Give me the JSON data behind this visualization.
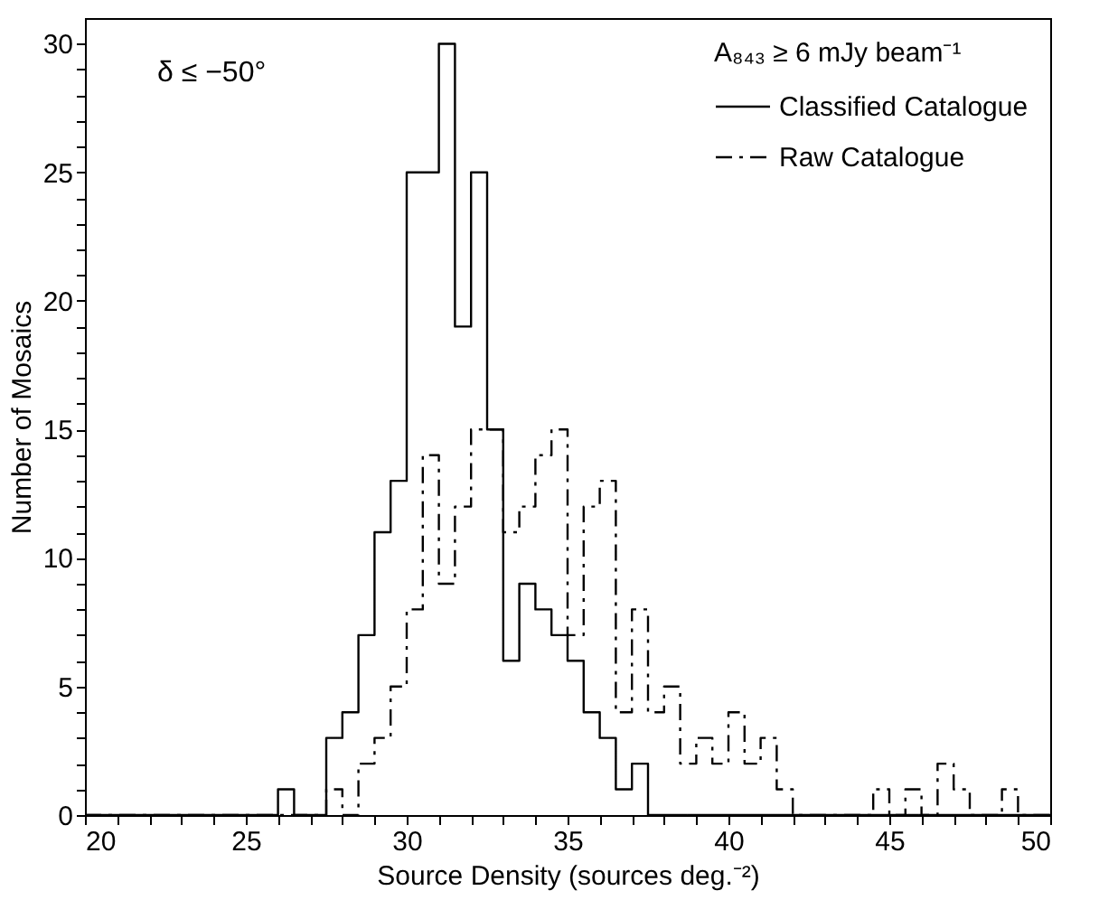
{
  "chart_data": {
    "type": "histogram",
    "xlabel": "Source Density (sources deg.⁻²)",
    "ylabel": "Number of Mosaics",
    "legend_title": "A₈₄₃ ≥ 6 mJy beam⁻¹",
    "annotations": [
      "δ ≤ −50°"
    ],
    "bins": [
      20,
      20.5,
      21,
      21.5,
      22,
      22.5,
      23,
      23.5,
      24,
      24.5,
      25,
      25.5,
      26,
      26.5,
      27,
      27.5,
      28,
      28.5,
      29,
      29.5,
      30,
      30.5,
      31,
      31.5,
      32,
      32.5,
      33,
      33.5,
      34,
      34.5,
      35,
      35.5,
      36,
      36.5,
      37,
      37.5,
      38,
      38.5,
      39,
      39.5,
      40,
      40.5,
      41,
      41.5,
      42,
      42.5,
      43,
      43.5,
      44,
      44.5,
      45,
      45.5,
      46,
      46.5,
      47,
      47.5,
      48,
      48.5,
      49,
      49.5,
      50
    ],
    "series": [
      {
        "name": "Classified Catalogue",
        "color": "#000000",
        "line_style": "solid",
        "values": [
          0,
          0,
          0,
          0,
          0,
          0,
          0,
          0,
          0,
          0,
          0,
          0,
          1,
          0,
          0,
          3,
          4,
          7,
          11,
          13,
          25,
          25,
          30,
          19,
          25,
          15,
          6,
          9,
          8,
          7,
          6,
          4,
          3,
          1,
          2,
          0,
          0,
          0,
          0,
          0,
          0,
          0,
          0,
          0,
          0,
          0,
          0,
          0,
          0,
          0,
          0,
          0,
          0,
          0,
          0,
          0,
          0,
          0,
          0,
          0
        ]
      },
      {
        "name": "Raw Catalogue",
        "color": "#000000",
        "line_style": "dashed",
        "values": [
          0,
          0,
          0,
          0,
          0,
          0,
          0,
          0,
          0,
          0,
          0,
          0,
          0,
          0,
          0,
          1,
          0,
          2,
          3,
          5,
          8,
          14,
          9,
          12,
          15,
          15,
          11,
          12,
          14,
          15,
          7,
          12,
          13,
          4,
          8,
          4,
          5,
          2,
          3,
          2,
          4,
          2,
          3,
          1,
          0,
          0,
          0,
          0,
          0,
          1,
          0,
          1,
          0,
          2,
          1,
          0,
          0,
          1,
          0,
          0
        ]
      }
    ],
    "xlim": [
      20,
      50
    ],
    "xticks": [
      20,
      {
        "value": 21,
        "label": null
      },
      {
        "value": 22,
        "label": null
      },
      {
        "value": 23,
        "label": null
      },
      {
        "value": 24,
        "label": null
      },
      25,
      {
        "value": 26,
        "label": null
      },
      {
        "value": 27,
        "label": null
      },
      {
        "value": 28,
        "label": null
      },
      {
        "value": 29,
        "label": null
      },
      30,
      {
        "value": 31,
        "label": null
      },
      {
        "value": 32,
        "label": null
      },
      {
        "value": 33,
        "label": null
      },
      {
        "value": 34,
        "label": null
      },
      35,
      {
        "value": 36,
        "label": null
      },
      {
        "value": 37,
        "label": null
      },
      {
        "value": 38,
        "label": null
      },
      {
        "value": 39,
        "label": null
      },
      40,
      {
        "value": 41,
        "label": null
      },
      {
        "value": 42,
        "label": null
      },
      {
        "value": 43,
        "label": null
      },
      {
        "value": 44,
        "label": null
      },
      45,
      {
        "value": 46,
        "label": null
      },
      {
        "value": 47,
        "label": null
      },
      {
        "value": 48,
        "label": null
      },
      {
        "value": 49,
        "label": null
      },
      50
    ],
    "ylim": [
      0,
      31
    ],
    "yticks": [
      0,
      {
        "value": 1,
        "label": null
      },
      {
        "value": 2,
        "label": null
      },
      {
        "value": 3,
        "label": null
      },
      {
        "value": 4,
        "label": null
      },
      5,
      {
        "value": 6,
        "label": null
      },
      {
        "value": 7,
        "label": null
      },
      {
        "value": 8,
        "label": null
      },
      {
        "value": 9,
        "label": null
      },
      10,
      {
        "value": 11,
        "label": null
      },
      {
        "value": 12,
        "label": null
      },
      {
        "value": 13,
        "label": null
      },
      {
        "value": 14,
        "label": null
      },
      15,
      {
        "value": 16,
        "label": null
      },
      {
        "value": 17,
        "label": null
      },
      {
        "value": 18,
        "label": null
      },
      {
        "value": 19,
        "label": null
      },
      20,
      {
        "value": 21,
        "label": null
      },
      {
        "value": 22,
        "label": null
      },
      {
        "value": 23,
        "label": null
      },
      {
        "value": 24,
        "label": null
      },
      25,
      {
        "value": 26,
        "label": null
      },
      {
        "value": 27,
        "label": null
      },
      {
        "value": 28,
        "label": null
      },
      {
        "value": 29,
        "label": null
      },
      30
    ],
    "grid": false,
    "legend": "top right"
  }
}
